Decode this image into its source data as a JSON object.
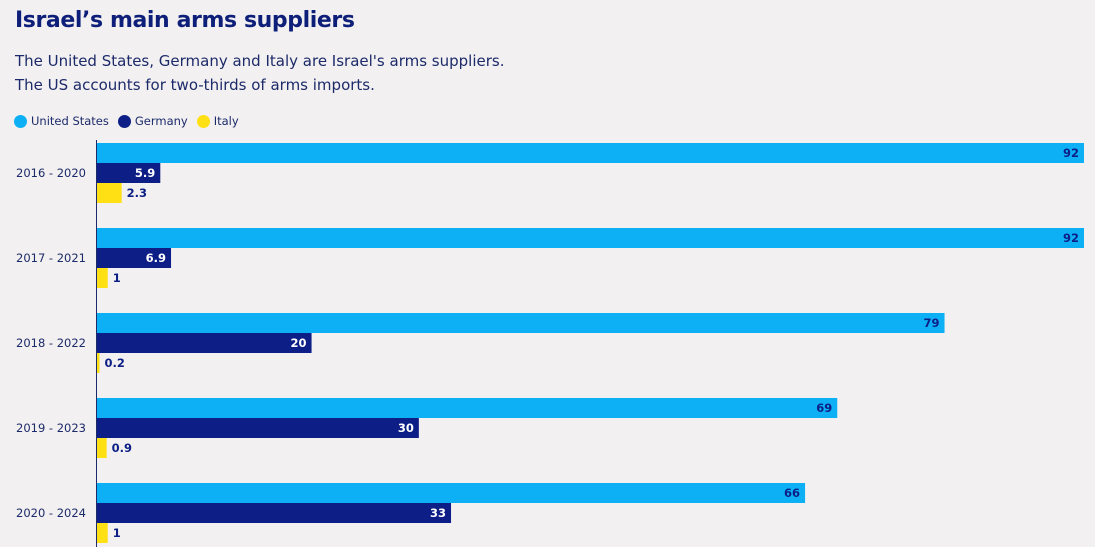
{
  "title": "Israel’s main arms suppliers",
  "subtitle_line1": "The United States, Germany and Italy are Israel's arms suppliers.",
  "subtitle_line2": "The US accounts for two-thirds of arms imports.",
  "colors": {
    "United States": "#0db0f5",
    "Germany": "#0d1f86",
    "Italy": "#ffe015"
  },
  "chart_data": {
    "type": "bar",
    "orientation": "horizontal",
    "title": "Israel’s main arms suppliers",
    "categories": [
      "2016 - 2020",
      "2017 - 2021",
      "2018 - 2022",
      "2019 - 2023",
      "2020 - 2024"
    ],
    "series": [
      {
        "name": "United States",
        "values": [
          92,
          92,
          79,
          69,
          66
        ]
      },
      {
        "name": "Germany",
        "values": [
          5.9,
          6.9,
          20,
          30,
          33
        ]
      },
      {
        "name": "Italy",
        "values": [
          2.3,
          1,
          0.2,
          0.9,
          1
        ]
      }
    ],
    "xlim": [
      0,
      92
    ],
    "legend": "top-left",
    "grid": false
  }
}
